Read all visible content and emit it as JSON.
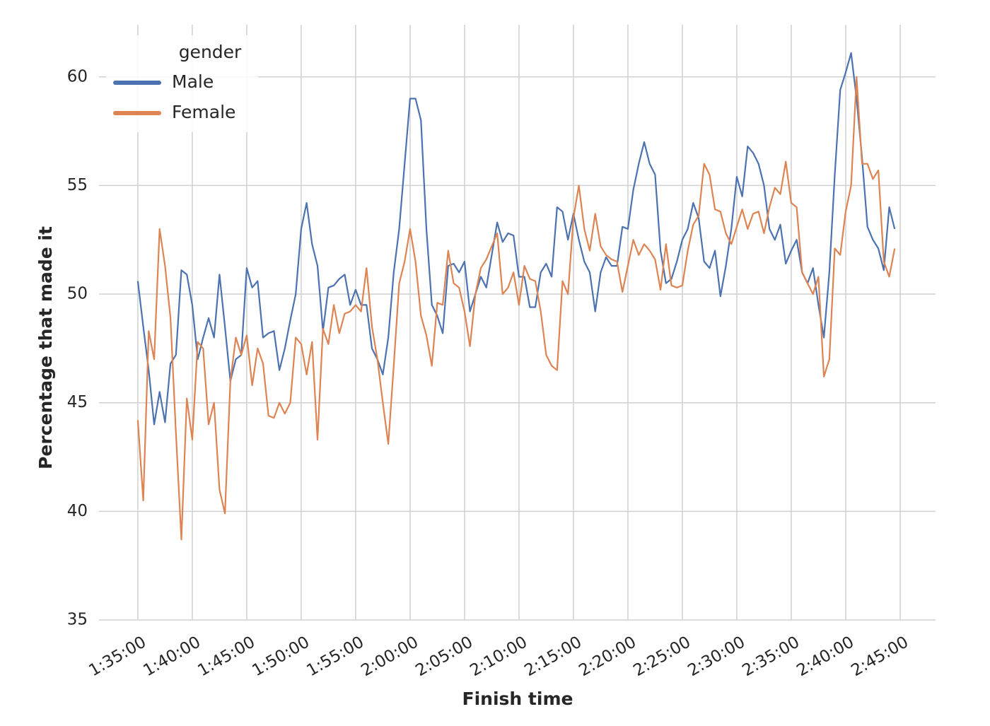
{
  "chart_data": {
    "type": "line",
    "xlabel": "Finish time",
    "ylabel": "Percentage that made it",
    "x": [
      5700,
      5730,
      5760,
      5790,
      5820,
      5850,
      5880,
      5910,
      5940,
      5970,
      6000,
      6030,
      6060,
      6090,
      6120,
      6150,
      6180,
      6210,
      6240,
      6270,
      6300,
      6330,
      6360,
      6390,
      6420,
      6450,
      6480,
      6510,
      6540,
      6570,
      6600,
      6630,
      6660,
      6690,
      6720,
      6750,
      6780,
      6810,
      6840,
      6870,
      6900,
      6930,
      6960,
      6990,
      7020,
      7050,
      7080,
      7110,
      7140,
      7170,
      7200,
      7230,
      7260,
      7290,
      7320,
      7350,
      7380,
      7410,
      7440,
      7470,
      7500,
      7530,
      7560,
      7590,
      7620,
      7650,
      7680,
      7710,
      7740,
      7770,
      7800,
      7830,
      7860,
      7890,
      7920,
      7950,
      7980,
      8010,
      8040,
      8070,
      8100,
      8130,
      8160,
      8190,
      8220,
      8250,
      8280,
      8310,
      8340,
      8370,
      8400,
      8430,
      8460,
      8490,
      8520,
      8550,
      8580,
      8610,
      8640,
      8670,
      8700,
      8730,
      8760,
      8790,
      8820,
      8850,
      8880,
      8910,
      8940,
      8970,
      9000,
      9030,
      9060,
      9090,
      9120,
      9150,
      9180,
      9210,
      9240,
      9270,
      9300,
      9330,
      9360,
      9390,
      9420,
      9450,
      9480,
      9510,
      9540,
      9570,
      9600,
      9630,
      9660,
      9690,
      9720,
      9750,
      9780,
      9810,
      9840,
      9870
    ],
    "series": [
      {
        "name": "Male",
        "color": "#4c72b0",
        "values": [
          50.6,
          48.5,
          46.5,
          44.0,
          45.5,
          44.1,
          46.8,
          47.2,
          51.1,
          50.9,
          49.5,
          47.0,
          48.0,
          48.9,
          48.0,
          50.9,
          48.5,
          46.0,
          47.0,
          47.2,
          51.2,
          50.3,
          50.6,
          48.0,
          48.2,
          48.3,
          46.5,
          47.5,
          48.8,
          50.0,
          53.0,
          54.2,
          52.3,
          51.3,
          48.3,
          50.3,
          50.4,
          50.7,
          50.9,
          49.5,
          50.2,
          49.5,
          49.5,
          47.5,
          47.0,
          46.3,
          48.0,
          51.0,
          53.0,
          56.0,
          59.0,
          59.0,
          58.0,
          53.0,
          49.5,
          49.0,
          48.2,
          51.3,
          51.4,
          51.0,
          51.5,
          49.2,
          50.0,
          50.8,
          50.3,
          51.8,
          53.3,
          52.4,
          52.8,
          52.7,
          50.8,
          50.8,
          49.4,
          49.4,
          51.0,
          51.4,
          50.8,
          54.0,
          53.8,
          52.5,
          53.7,
          52.5,
          51.5,
          51.0,
          49.2,
          51.0,
          51.7,
          51.3,
          51.3,
          53.1,
          53.0,
          54.8,
          56.0,
          57.0,
          56.0,
          55.5,
          52.0,
          50.5,
          50.7,
          51.5,
          52.5,
          53.0,
          54.2,
          53.5,
          51.5,
          51.2,
          52.0,
          49.9,
          51.3,
          53.0,
          55.4,
          54.5,
          56.8,
          56.5,
          56.0,
          55.0,
          53.0,
          52.5,
          53.2,
          51.4,
          52.0,
          52.5,
          51.0,
          50.5,
          51.2,
          49.5,
          48.0,
          51.0,
          55.5,
          59.4,
          60.2,
          61.1,
          59.0,
          56.3,
          53.1,
          52.5,
          52.1,
          51.1,
          54.0,
          53.0
        ]
      },
      {
        "name": "Female",
        "color": "#dd8452",
        "values": [
          44.2,
          40.5,
          48.3,
          47.0,
          53.0,
          51.3,
          48.9,
          43.6,
          38.7,
          45.2,
          43.3,
          47.8,
          47.5,
          44.0,
          45.0,
          41.0,
          39.9,
          46.0,
          48.0,
          47.2,
          48.1,
          45.8,
          47.5,
          46.8,
          44.4,
          44.3,
          45.0,
          44.5,
          45.0,
          48.0,
          47.7,
          46.3,
          47.8,
          43.3,
          48.4,
          47.7,
          49.5,
          48.2,
          49.1,
          49.2,
          49.5,
          49.2,
          51.2,
          48.5,
          47.0,
          45.0,
          43.1,
          46.7,
          50.5,
          51.5,
          53.0,
          51.5,
          49.0,
          48.1,
          46.7,
          49.6,
          49.5,
          52.0,
          50.5,
          50.3,
          49.2,
          47.6,
          50.0,
          51.2,
          51.6,
          52.2,
          52.8,
          50.0,
          50.3,
          51.0,
          49.5,
          51.3,
          50.7,
          50.6,
          49.2,
          47.2,
          46.7,
          46.5,
          50.6,
          50.0,
          53.5,
          55.0,
          53.0,
          52.0,
          53.7,
          52.2,
          51.8,
          51.6,
          51.5,
          50.1,
          51.3,
          52.5,
          51.8,
          52.3,
          52.0,
          51.6,
          50.2,
          52.3,
          50.4,
          50.3,
          50.4,
          52.0,
          53.2,
          53.6,
          56.0,
          55.5,
          53.9,
          53.8,
          52.8,
          52.3,
          53.1,
          53.9,
          53.0,
          53.7,
          53.8,
          52.8,
          54.0,
          54.9,
          54.6,
          56.1,
          54.2,
          54.0,
          51.0,
          50.5,
          50.0,
          50.8,
          46.2,
          47.0,
          52.1,
          51.8,
          53.8,
          55.0,
          60.0,
          56.0,
          56.0,
          55.3,
          55.7,
          51.5,
          50.8,
          52.1
        ]
      }
    ],
    "xlim": [
      5486,
      10095
    ],
    "ylim": [
      35,
      62.4
    ],
    "xticks": [
      {
        "value": 5700,
        "label": "1:35:00"
      },
      {
        "value": 6000,
        "label": "1:40:00"
      },
      {
        "value": 6300,
        "label": "1:45:00"
      },
      {
        "value": 6600,
        "label": "1:50:00"
      },
      {
        "value": 6900,
        "label": "1:55:00"
      },
      {
        "value": 7200,
        "label": "2:00:00"
      },
      {
        "value": 7500,
        "label": "2:05:00"
      },
      {
        "value": 7800,
        "label": "2:10:00"
      },
      {
        "value": 8100,
        "label": "2:15:00"
      },
      {
        "value": 8400,
        "label": "2:20:00"
      },
      {
        "value": 8700,
        "label": "2:25:00"
      },
      {
        "value": 9000,
        "label": "2:30:00"
      },
      {
        "value": 9300,
        "label": "2:35:00"
      },
      {
        "value": 9600,
        "label": "2:40:00"
      },
      {
        "value": 9900,
        "label": "2:45:00"
      }
    ],
    "yticks": [
      35,
      40,
      45,
      50,
      55,
      60
    ],
    "grid": true,
    "legend": {
      "title": "gender",
      "loc": "upper left"
    }
  }
}
